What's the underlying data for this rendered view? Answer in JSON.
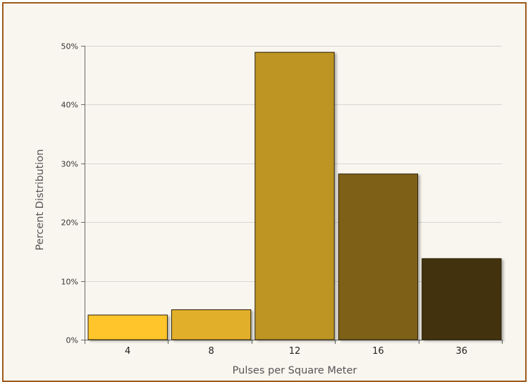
{
  "chart_data": {
    "type": "bar",
    "categories": [
      "4",
      "8",
      "12",
      "16",
      "36"
    ],
    "values": [
      4.2,
      5.1,
      48.9,
      28.2,
      13.8
    ],
    "value_unit": "%",
    "ylim": [
      0,
      50
    ],
    "yticks": [
      "0%",
      "10%",
      "20%",
      "30%",
      "40%",
      "50%"
    ],
    "title": "",
    "xlabel": "Pulses per Square Meter",
    "ylabel": "Percent Distribution",
    "grid": true,
    "legend": "none",
    "colors": [
      "#ffc52c",
      "#e2af2c",
      "#be9424",
      "#7e6116",
      "#43330d"
    ],
    "frame_color": "#9c5a1c",
    "background_color": "#f9f6ef"
  }
}
